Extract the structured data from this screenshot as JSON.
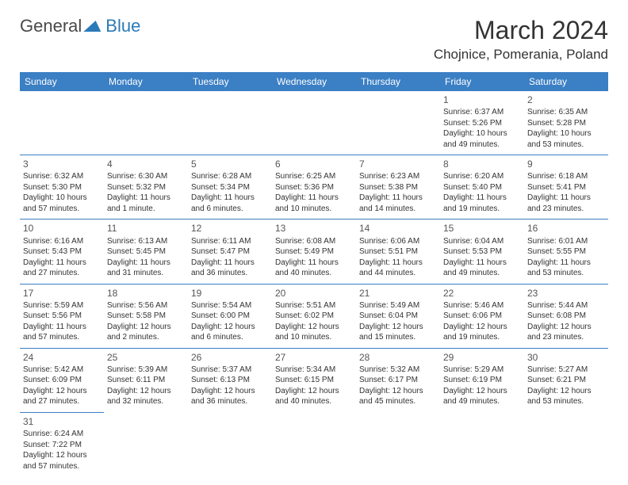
{
  "brand": {
    "text1": "General",
    "text2": "Blue"
  },
  "title": "March 2024",
  "subtitle": "Chojnice, Pomerania, Poland",
  "dayHeaders": [
    "Sunday",
    "Monday",
    "Tuesday",
    "Wednesday",
    "Thursday",
    "Friday",
    "Saturday"
  ],
  "colors": {
    "headerBg": "#3b7fc4",
    "headerText": "#ffffff",
    "border": "#3b7fc4",
    "logoAccent": "#2a7ab8",
    "bodyText": "#333333"
  },
  "weeks": [
    [
      null,
      null,
      null,
      null,
      null,
      {
        "n": "1",
        "sr": "Sunrise: 6:37 AM",
        "ss": "Sunset: 5:26 PM",
        "d1": "Daylight: 10 hours",
        "d2": "and 49 minutes."
      },
      {
        "n": "2",
        "sr": "Sunrise: 6:35 AM",
        "ss": "Sunset: 5:28 PM",
        "d1": "Daylight: 10 hours",
        "d2": "and 53 minutes."
      }
    ],
    [
      {
        "n": "3",
        "sr": "Sunrise: 6:32 AM",
        "ss": "Sunset: 5:30 PM",
        "d1": "Daylight: 10 hours",
        "d2": "and 57 minutes."
      },
      {
        "n": "4",
        "sr": "Sunrise: 6:30 AM",
        "ss": "Sunset: 5:32 PM",
        "d1": "Daylight: 11 hours",
        "d2": "and 1 minute."
      },
      {
        "n": "5",
        "sr": "Sunrise: 6:28 AM",
        "ss": "Sunset: 5:34 PM",
        "d1": "Daylight: 11 hours",
        "d2": "and 6 minutes."
      },
      {
        "n": "6",
        "sr": "Sunrise: 6:25 AM",
        "ss": "Sunset: 5:36 PM",
        "d1": "Daylight: 11 hours",
        "d2": "and 10 minutes."
      },
      {
        "n": "7",
        "sr": "Sunrise: 6:23 AM",
        "ss": "Sunset: 5:38 PM",
        "d1": "Daylight: 11 hours",
        "d2": "and 14 minutes."
      },
      {
        "n": "8",
        "sr": "Sunrise: 6:20 AM",
        "ss": "Sunset: 5:40 PM",
        "d1": "Daylight: 11 hours",
        "d2": "and 19 minutes."
      },
      {
        "n": "9",
        "sr": "Sunrise: 6:18 AM",
        "ss": "Sunset: 5:41 PM",
        "d1": "Daylight: 11 hours",
        "d2": "and 23 minutes."
      }
    ],
    [
      {
        "n": "10",
        "sr": "Sunrise: 6:16 AM",
        "ss": "Sunset: 5:43 PM",
        "d1": "Daylight: 11 hours",
        "d2": "and 27 minutes."
      },
      {
        "n": "11",
        "sr": "Sunrise: 6:13 AM",
        "ss": "Sunset: 5:45 PM",
        "d1": "Daylight: 11 hours",
        "d2": "and 31 minutes."
      },
      {
        "n": "12",
        "sr": "Sunrise: 6:11 AM",
        "ss": "Sunset: 5:47 PM",
        "d1": "Daylight: 11 hours",
        "d2": "and 36 minutes."
      },
      {
        "n": "13",
        "sr": "Sunrise: 6:08 AM",
        "ss": "Sunset: 5:49 PM",
        "d1": "Daylight: 11 hours",
        "d2": "and 40 minutes."
      },
      {
        "n": "14",
        "sr": "Sunrise: 6:06 AM",
        "ss": "Sunset: 5:51 PM",
        "d1": "Daylight: 11 hours",
        "d2": "and 44 minutes."
      },
      {
        "n": "15",
        "sr": "Sunrise: 6:04 AM",
        "ss": "Sunset: 5:53 PM",
        "d1": "Daylight: 11 hours",
        "d2": "and 49 minutes."
      },
      {
        "n": "16",
        "sr": "Sunrise: 6:01 AM",
        "ss": "Sunset: 5:55 PM",
        "d1": "Daylight: 11 hours",
        "d2": "and 53 minutes."
      }
    ],
    [
      {
        "n": "17",
        "sr": "Sunrise: 5:59 AM",
        "ss": "Sunset: 5:56 PM",
        "d1": "Daylight: 11 hours",
        "d2": "and 57 minutes."
      },
      {
        "n": "18",
        "sr": "Sunrise: 5:56 AM",
        "ss": "Sunset: 5:58 PM",
        "d1": "Daylight: 12 hours",
        "d2": "and 2 minutes."
      },
      {
        "n": "19",
        "sr": "Sunrise: 5:54 AM",
        "ss": "Sunset: 6:00 PM",
        "d1": "Daylight: 12 hours",
        "d2": "and 6 minutes."
      },
      {
        "n": "20",
        "sr": "Sunrise: 5:51 AM",
        "ss": "Sunset: 6:02 PM",
        "d1": "Daylight: 12 hours",
        "d2": "and 10 minutes."
      },
      {
        "n": "21",
        "sr": "Sunrise: 5:49 AM",
        "ss": "Sunset: 6:04 PM",
        "d1": "Daylight: 12 hours",
        "d2": "and 15 minutes."
      },
      {
        "n": "22",
        "sr": "Sunrise: 5:46 AM",
        "ss": "Sunset: 6:06 PM",
        "d1": "Daylight: 12 hours",
        "d2": "and 19 minutes."
      },
      {
        "n": "23",
        "sr": "Sunrise: 5:44 AM",
        "ss": "Sunset: 6:08 PM",
        "d1": "Daylight: 12 hours",
        "d2": "and 23 minutes."
      }
    ],
    [
      {
        "n": "24",
        "sr": "Sunrise: 5:42 AM",
        "ss": "Sunset: 6:09 PM",
        "d1": "Daylight: 12 hours",
        "d2": "and 27 minutes."
      },
      {
        "n": "25",
        "sr": "Sunrise: 5:39 AM",
        "ss": "Sunset: 6:11 PM",
        "d1": "Daylight: 12 hours",
        "d2": "and 32 minutes."
      },
      {
        "n": "26",
        "sr": "Sunrise: 5:37 AM",
        "ss": "Sunset: 6:13 PM",
        "d1": "Daylight: 12 hours",
        "d2": "and 36 minutes."
      },
      {
        "n": "27",
        "sr": "Sunrise: 5:34 AM",
        "ss": "Sunset: 6:15 PM",
        "d1": "Daylight: 12 hours",
        "d2": "and 40 minutes."
      },
      {
        "n": "28",
        "sr": "Sunrise: 5:32 AM",
        "ss": "Sunset: 6:17 PM",
        "d1": "Daylight: 12 hours",
        "d2": "and 45 minutes."
      },
      {
        "n": "29",
        "sr": "Sunrise: 5:29 AM",
        "ss": "Sunset: 6:19 PM",
        "d1": "Daylight: 12 hours",
        "d2": "and 49 minutes."
      },
      {
        "n": "30",
        "sr": "Sunrise: 5:27 AM",
        "ss": "Sunset: 6:21 PM",
        "d1": "Daylight: 12 hours",
        "d2": "and 53 minutes."
      }
    ],
    [
      {
        "n": "31",
        "sr": "Sunrise: 6:24 AM",
        "ss": "Sunset: 7:22 PM",
        "d1": "Daylight: 12 hours",
        "d2": "and 57 minutes."
      },
      null,
      null,
      null,
      null,
      null,
      null
    ]
  ]
}
